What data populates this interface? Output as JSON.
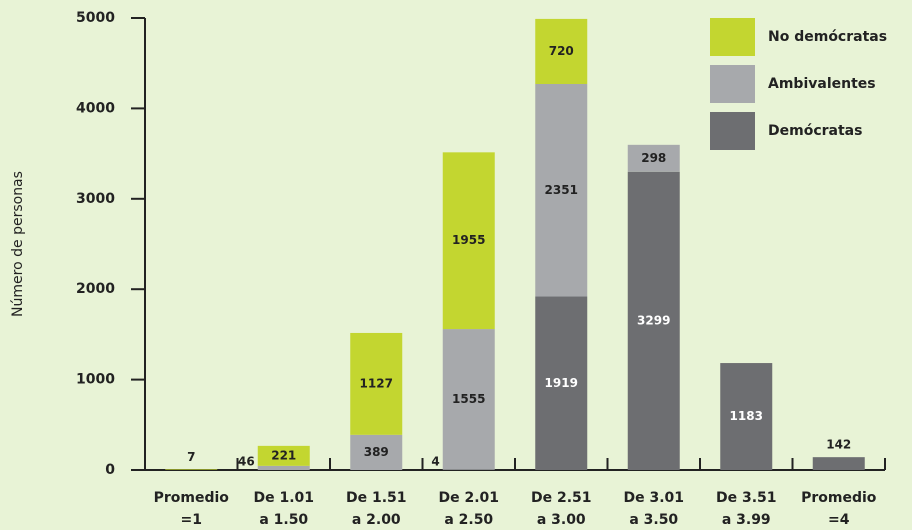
{
  "chart_data": {
    "type": "stacked_bar",
    "y_label": "Número de personas",
    "categories": [
      [
        "Promedio",
        "=1"
      ],
      [
        "De 1.01",
        "a 1.50"
      ],
      [
        "De 1.51",
        "a 2.00"
      ],
      [
        "De 2.01",
        "a 2.50"
      ],
      [
        "De 2.51",
        "a 3.00"
      ],
      [
        "De 3.01",
        "a 3.50"
      ],
      [
        "De 3.51",
        "a 3.99"
      ],
      [
        "Promedio",
        "=4"
      ]
    ],
    "series": [
      {
        "name": "Demócratas",
        "color": "#6d6e71",
        "values": [
          null,
          null,
          null,
          4,
          1919,
          3299,
          1183,
          142
        ]
      },
      {
        "name": "Ambivalentes",
        "color": "#a7a9ac",
        "values": [
          null,
          46,
          389,
          1555,
          2351,
          298,
          null,
          null
        ]
      },
      {
        "name": "No demócratas",
        "color": "#c3d630",
        "values": [
          7,
          221,
          1127,
          1955,
          720,
          null,
          null,
          null
        ]
      }
    ],
    "ylim": [
      0,
      5000
    ],
    "yticks": [
      0,
      1000,
      2000,
      3000,
      4000,
      5000
    ]
  }
}
